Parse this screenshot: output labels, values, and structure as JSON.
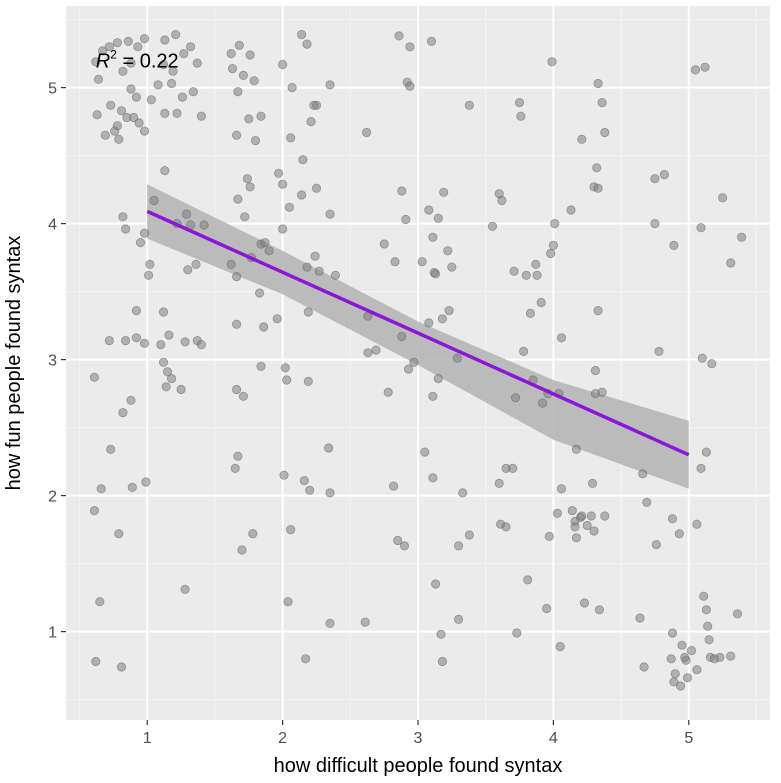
{
  "chart_data": {
    "type": "scatter",
    "xlabel": "how difficult people found syntax",
    "ylabel": "how fun people found syntax",
    "xlim": [
      0.4,
      5.6
    ],
    "ylim": [
      0.35,
      5.6
    ],
    "x_ticks": [
      1,
      2,
      3,
      4,
      5
    ],
    "y_ticks": [
      1,
      2,
      3,
      4,
      5
    ],
    "x_tick_labels": [
      "1",
      "2",
      "3",
      "4",
      "5"
    ],
    "y_tick_labels": [
      "1",
      "2",
      "3",
      "4",
      "5"
    ],
    "grid": true,
    "legend": "none",
    "annotation": {
      "symbol": "R",
      "superscript": "2",
      "rest": " = 0.22",
      "x": 0.62,
      "y": 5.2
    },
    "colors": {
      "panel_background": "#ebebeb",
      "grid_major": "#ffffff",
      "grid_minor": "#f5f5f5",
      "point": "#7f7f7f",
      "regression_line": "#8a16d6",
      "confidence_band": "#b3b3b3"
    },
    "regression": {
      "x": [
        1,
        5
      ],
      "y": [
        4.09,
        2.3
      ]
    },
    "confidence_band": {
      "x": [
        1,
        2,
        3,
        4,
        5
      ],
      "upper": [
        4.29,
        3.8,
        3.28,
        2.85,
        2.55
      ],
      "lower": [
        3.89,
        3.48,
        2.96,
        2.41,
        2.05
      ]
    },
    "points": [
      [
        0.62,
        5.19
      ],
      [
        0.67,
        5.27
      ],
      [
        0.72,
        5.3
      ],
      [
        0.78,
        5.33
      ],
      [
        0.86,
        5.34
      ],
      [
        0.93,
        5.3
      ],
      [
        0.98,
        5.36
      ],
      [
        0.64,
        5.06
      ],
      [
        0.82,
        5.12
      ],
      [
        0.88,
        5.18
      ],
      [
        0.73,
        4.87
      ],
      [
        0.81,
        4.83
      ],
      [
        0.92,
        4.93
      ],
      [
        1.03,
        4.91
      ],
      [
        0.63,
        4.8
      ],
      [
        0.78,
        4.72
      ],
      [
        0.85,
        4.78
      ],
      [
        0.9,
        4.78
      ],
      [
        0.76,
        4.68
      ],
      [
        0.69,
        4.65
      ],
      [
        0.79,
        4.62
      ],
      [
        0.94,
        4.74
      ],
      [
        0.88,
        4.99
      ],
      [
        0.98,
        4.68
      ],
      [
        1.13,
        5.35
      ],
      [
        1.21,
        5.39
      ],
      [
        1.12,
        5.17
      ],
      [
        1.19,
        5.12
      ],
      [
        1.27,
        5.25
      ],
      [
        1.32,
        5.3
      ],
      [
        1.37,
        5.18
      ],
      [
        1.08,
        5.02
      ],
      [
        1.18,
        5.03
      ],
      [
        1.26,
        4.93
      ],
      [
        1.34,
        4.97
      ],
      [
        1.13,
        4.81
      ],
      [
        1.22,
        4.81
      ],
      [
        1.4,
        4.79
      ],
      [
        1.62,
        5.25
      ],
      [
        1.68,
        5.31
      ],
      [
        1.76,
        5.24
      ],
      [
        1.63,
        5.14
      ],
      [
        1.71,
        5.09
      ],
      [
        1.79,
        5.05
      ],
      [
        1.67,
        4.97
      ],
      [
        1.75,
        4.77
      ],
      [
        1.66,
        4.65
      ],
      [
        1.8,
        4.61
      ],
      [
        1.84,
        4.79
      ],
      [
        2.0,
        5.17
      ],
      [
        2.14,
        5.39
      ],
      [
        2.18,
        5.32
      ],
      [
        2.07,
        5.0
      ],
      [
        2.25,
        4.87
      ],
      [
        2.23,
        4.87
      ],
      [
        2.35,
        5.02
      ],
      [
        2.21,
        4.75
      ],
      [
        2.06,
        4.63
      ],
      [
        2.15,
        4.47
      ],
      [
        2.62,
        4.67
      ],
      [
        2.86,
        5.38
      ],
      [
        2.94,
        5.3
      ],
      [
        3.1,
        5.34
      ],
      [
        2.92,
        5.04
      ],
      [
        2.94,
        5.01
      ],
      [
        3.38,
        4.87
      ],
      [
        3.75,
        4.89
      ],
      [
        3.76,
        4.79
      ],
      [
        3.99,
        5.19
      ],
      [
        4.33,
        5.03
      ],
      [
        4.36,
        4.89
      ],
      [
        4.38,
        4.67
      ],
      [
        4.21,
        4.62
      ],
      [
        4.32,
        4.41
      ],
      [
        4.75,
        4.33
      ],
      [
        4.82,
        4.36
      ],
      [
        5.05,
        5.13
      ],
      [
        5.12,
        5.15
      ],
      [
        1.13,
        4.39
      ],
      [
        1.05,
        4.17
      ],
      [
        1.22,
        4.0
      ],
      [
        1.32,
        3.99
      ],
      [
        1.42,
        3.99
      ],
      [
        1.29,
        4.07
      ],
      [
        0.82,
        4.05
      ],
      [
        0.84,
        3.96
      ],
      [
        0.95,
        3.86
      ],
      [
        0.98,
        3.93
      ],
      [
        1.02,
        3.7
      ],
      [
        1.01,
        3.62
      ],
      [
        1.3,
        3.66
      ],
      [
        1.36,
        3.7
      ],
      [
        1.67,
        4.18
      ],
      [
        1.74,
        4.33
      ],
      [
        1.76,
        4.27
      ],
      [
        1.97,
        4.37
      ],
      [
        2.0,
        4.29
      ],
      [
        2.05,
        4.12
      ],
      [
        2.14,
        4.21
      ],
      [
        2.25,
        4.26
      ],
      [
        2.35,
        4.07
      ],
      [
        1.72,
        4.05
      ],
      [
        1.84,
        3.85
      ],
      [
        1.87,
        3.86
      ],
      [
        1.77,
        3.75
      ],
      [
        1.9,
        3.8
      ],
      [
        2.0,
        3.96
      ],
      [
        2.24,
        3.76
      ],
      [
        2.18,
        3.68
      ],
      [
        2.27,
        3.65
      ],
      [
        2.39,
        3.62
      ],
      [
        1.62,
        3.7
      ],
      [
        1.66,
        3.61
      ],
      [
        2.88,
        4.24
      ],
      [
        2.91,
        4.03
      ],
      [
        3.08,
        4.1
      ],
      [
        3.15,
        4.04
      ],
      [
        3.19,
        4.23
      ],
      [
        3.11,
        3.9
      ],
      [
        3.22,
        3.8
      ],
      [
        3.03,
        3.72
      ],
      [
        3.12,
        3.64
      ],
      [
        3.13,
        3.63
      ],
      [
        3.25,
        3.68
      ],
      [
        2.75,
        3.85
      ],
      [
        2.83,
        3.72
      ],
      [
        3.6,
        4.22
      ],
      [
        3.62,
        4.17
      ],
      [
        3.55,
        3.98
      ],
      [
        4.01,
        4.0
      ],
      [
        4.0,
        3.84
      ],
      [
        3.98,
        3.78
      ],
      [
        3.87,
        3.7
      ],
      [
        3.8,
        3.62
      ],
      [
        3.88,
        3.62
      ],
      [
        3.71,
        3.65
      ],
      [
        4.13,
        4.1
      ],
      [
        4.3,
        4.27
      ],
      [
        4.33,
        4.26
      ],
      [
        4.75,
        4.0
      ],
      [
        5.09,
        3.97
      ],
      [
        5.25,
        4.19
      ],
      [
        5.39,
        3.9
      ],
      [
        5.31,
        3.71
      ],
      [
        4.89,
        3.84
      ],
      [
        0.61,
        2.87
      ],
      [
        0.72,
        3.14
      ],
      [
        0.84,
        3.14
      ],
      [
        0.92,
        3.16
      ],
      [
        0.98,
        3.12
      ],
      [
        0.92,
        3.36
      ],
      [
        1.12,
        3.35
      ],
      [
        1.1,
        3.11
      ],
      [
        1.16,
        3.18
      ],
      [
        1.12,
        2.98
      ],
      [
        1.15,
        2.91
      ],
      [
        1.18,
        2.86
      ],
      [
        1.14,
        2.8
      ],
      [
        1.25,
        2.78
      ],
      [
        1.28,
        3.13
      ],
      [
        1.37,
        3.14
      ],
      [
        1.4,
        3.11
      ],
      [
        0.88,
        2.7
      ],
      [
        0.82,
        2.61
      ],
      [
        1.66,
        3.26
      ],
      [
        1.86,
        3.24
      ],
      [
        1.96,
        3.3
      ],
      [
        1.83,
        3.49
      ],
      [
        2.19,
        3.35
      ],
      [
        2.02,
        2.94
      ],
      [
        2.03,
        2.85
      ],
      [
        2.19,
        2.84
      ],
      [
        1.84,
        2.95
      ],
      [
        1.66,
        2.78
      ],
      [
        1.71,
        2.73
      ],
      [
        2.63,
        3.32
      ],
      [
        2.63,
        3.05
      ],
      [
        2.69,
        3.07
      ],
      [
        2.88,
        3.17
      ],
      [
        2.93,
        2.93
      ],
      [
        2.97,
        2.98
      ],
      [
        3.08,
        3.27
      ],
      [
        3.18,
        3.3
      ],
      [
        3.23,
        3.36
      ],
      [
        3.29,
        3.01
      ],
      [
        3.15,
        2.86
      ],
      [
        3.11,
        2.73
      ],
      [
        2.78,
        2.76
      ],
      [
        3.72,
        2.72
      ],
      [
        3.78,
        3.06
      ],
      [
        3.85,
        2.85
      ],
      [
        3.96,
        2.75
      ],
      [
        3.92,
        2.68
      ],
      [
        4.04,
        2.75
      ],
      [
        3.91,
        3.42
      ],
      [
        3.83,
        3.34
      ],
      [
        4.06,
        3.16
      ],
      [
        4.31,
        2.92
      ],
      [
        4.33,
        3.36
      ],
      [
        4.31,
        2.75
      ],
      [
        4.36,
        2.76
      ],
      [
        4.78,
        3.06
      ],
      [
        5.1,
        3.01
      ],
      [
        5.17,
        2.97
      ],
      [
        0.73,
        2.34
      ],
      [
        0.66,
        2.05
      ],
      [
        0.61,
        1.89
      ],
      [
        0.79,
        1.72
      ],
      [
        0.89,
        2.06
      ],
      [
        0.99,
        2.1
      ],
      [
        1.65,
        2.2
      ],
      [
        1.67,
        2.29
      ],
      [
        1.78,
        1.72
      ],
      [
        1.7,
        1.6
      ],
      [
        2.01,
        2.15
      ],
      [
        2.06,
        1.75
      ],
      [
        2.16,
        2.11
      ],
      [
        2.2,
        2.04
      ],
      [
        2.34,
        2.35
      ],
      [
        2.35,
        2.02
      ],
      [
        2.82,
        2.07
      ],
      [
        2.85,
        1.67
      ],
      [
        2.9,
        1.63
      ],
      [
        3.05,
        2.32
      ],
      [
        3.11,
        2.13
      ],
      [
        3.33,
        2.02
      ],
      [
        3.3,
        1.63
      ],
      [
        3.38,
        1.71
      ],
      [
        3.6,
        2.09
      ],
      [
        3.65,
        2.2
      ],
      [
        3.7,
        2.2
      ],
      [
        3.61,
        1.79
      ],
      [
        3.65,
        1.77
      ],
      [
        3.97,
        1.7
      ],
      [
        4.03,
        1.87
      ],
      [
        4.06,
        2.05
      ],
      [
        4.14,
        1.89
      ],
      [
        4.16,
        1.81
      ],
      [
        4.16,
        1.77
      ],
      [
        4.17,
        1.69
      ],
      [
        4.2,
        1.84
      ],
      [
        4.25,
        1.78
      ],
      [
        4.21,
        1.85
      ],
      [
        4.3,
        1.74
      ],
      [
        4.28,
        1.85
      ],
      [
        4.38,
        1.85
      ],
      [
        4.17,
        2.34
      ],
      [
        4.29,
        2.09
      ],
      [
        4.66,
        2.16
      ],
      [
        4.69,
        1.95
      ],
      [
        4.76,
        1.64
      ],
      [
        4.88,
        1.83
      ],
      [
        4.93,
        1.72
      ],
      [
        5.06,
        1.79
      ],
      [
        5.09,
        2.2
      ],
      [
        5.13,
        2.32
      ],
      [
        0.65,
        1.22
      ],
      [
        1.28,
        1.31
      ],
      [
        2.04,
        1.22
      ],
      [
        2.35,
        1.06
      ],
      [
        2.61,
        1.07
      ],
      [
        3.13,
        1.35
      ],
      [
        3.17,
        0.98
      ],
      [
        3.18,
        0.78
      ],
      [
        3.3,
        1.09
      ],
      [
        3.81,
        1.38
      ],
      [
        3.73,
        0.99
      ],
      [
        3.95,
        1.17
      ],
      [
        4.05,
        0.89
      ],
      [
        4.23,
        1.21
      ],
      [
        4.34,
        1.16
      ],
      [
        4.64,
        1.1
      ],
      [
        4.67,
        0.74
      ],
      [
        4.88,
        0.99
      ],
      [
        4.87,
        0.8
      ],
      [
        4.9,
        0.69
      ],
      [
        4.89,
        0.63
      ],
      [
        4.94,
        0.6
      ],
      [
        4.95,
        0.9
      ],
      [
        4.98,
        0.79
      ],
      [
        4.97,
        0.81
      ],
      [
        4.99,
        0.66
      ],
      [
        5.02,
        0.86
      ],
      [
        5.06,
        0.72
      ],
      [
        5.11,
        1.26
      ],
      [
        5.13,
        1.16
      ],
      [
        5.14,
        1.04
      ],
      [
        5.15,
        0.94
      ],
      [
        5.16,
        0.81
      ],
      [
        5.19,
        0.8
      ],
      [
        5.23,
        0.81
      ],
      [
        5.31,
        0.82
      ],
      [
        5.36,
        1.13
      ],
      [
        0.62,
        0.78
      ],
      [
        0.81,
        0.74
      ],
      [
        2.17,
        0.8
      ]
    ]
  }
}
